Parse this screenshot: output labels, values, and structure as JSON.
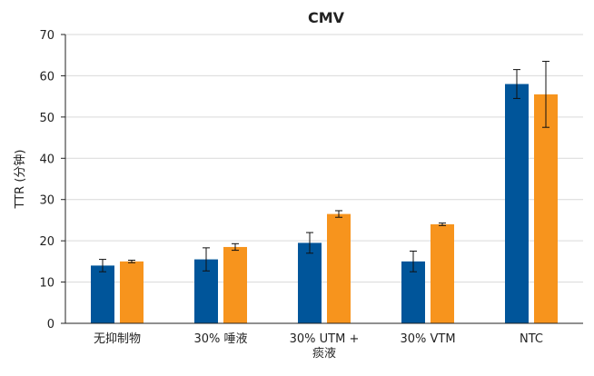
{
  "chart_data": {
    "type": "bar",
    "title": "CMV",
    "xlabel": "",
    "ylabel": "TTR (分钟)",
    "ylim": [
      0,
      70
    ],
    "yticks": [
      0,
      10,
      20,
      30,
      40,
      50,
      60,
      70
    ],
    "grid": true,
    "legend": "none",
    "categories": [
      [
        "无抑制物"
      ],
      [
        "30% 唾液"
      ],
      [
        "30% UTM +",
        "痰液"
      ],
      [
        "30% VTM"
      ],
      [
        "NTC"
      ]
    ],
    "series": [
      {
        "color": "#00559a",
        "values": [
          14.0,
          15.5,
          19.5,
          15.0,
          58.0
        ],
        "errors": [
          1.5,
          2.8,
          2.5,
          2.5,
          3.5
        ]
      },
      {
        "color": "#f7941d",
        "values": [
          15.0,
          18.5,
          26.5,
          24.0,
          55.5
        ],
        "errors": [
          0.3,
          0.8,
          0.8,
          0.3,
          8.0
        ]
      }
    ]
  }
}
